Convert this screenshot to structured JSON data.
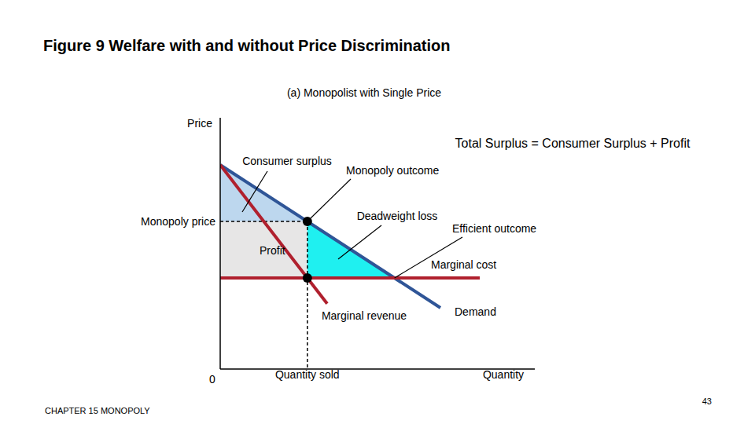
{
  "title": "Figure 9 Welfare with and without Price Discrimination",
  "footer": "CHAPTER 15 MONOPOLY",
  "page": 43,
  "chart_data": {
    "type": "line",
    "subtitle": "(a) Monopolist with Single Price",
    "equation": "Total Surplus = Consumer Surplus + Profit",
    "y_label": "Price",
    "x_label": "Quantity",
    "monopoly_price_label": "Monopoly price",
    "quantity_sold_label": "Quantity sold",
    "xlim": [
      0,
      10
    ],
    "ylim": [
      0,
      8
    ],
    "xticks": [
      0
    ],
    "tick_labels": "x",
    "grid": false,
    "series": [
      {
        "name": "Demand",
        "color": "#2f5597",
        "x": [
          0,
          7
        ],
        "values": [
          6.5,
          1.95
        ]
      },
      {
        "name": "Marginal revenue",
        "color": "#b0202e",
        "x": [
          0,
          3.4
        ],
        "values": [
          6.5,
          2.08
        ]
      },
      {
        "name": "Marginal cost",
        "color": "#b0202e",
        "x": [
          0,
          8.25
        ],
        "values": [
          2.9,
          2.9
        ]
      }
    ],
    "areas": {
      "consumer_surplus": {
        "color": "#bdd7ee",
        "x": [
          0,
          2.77
        ],
        "low": [
          4.7,
          4.7
        ],
        "high": [
          6.5,
          4.7
        ]
      },
      "profit": {
        "color": "#e7e6e6",
        "x": [
          0,
          2.77
        ],
        "low": [
          2.9,
          2.9
        ],
        "high": [
          4.7,
          4.7
        ]
      },
      "deadweight_loss": {
        "color": "#1ff0f0",
        "x": [
          2.77,
          5.54
        ],
        "low": [
          2.9,
          2.9
        ],
        "high": [
          4.7,
          2.9
        ]
      }
    },
    "points": {
      "color": "#000000",
      "marker": "circle",
      "x": [
        2.77,
        2.77
      ],
      "values": [
        4.7,
        2.9
      ]
    },
    "annotations": [
      {
        "text": "Consumer surplus",
        "x": 0.7,
        "y": 5.0
      },
      {
        "text": "Monopoly outcome",
        "x": 2.77,
        "y": 4.7
      },
      {
        "text": "Deadweight loss",
        "x": 3.75,
        "y": 3.5
      },
      {
        "text": "Efficient outcome",
        "x": 5.54,
        "y": 2.9
      },
      {
        "text": "Profit"
      }
    ]
  }
}
